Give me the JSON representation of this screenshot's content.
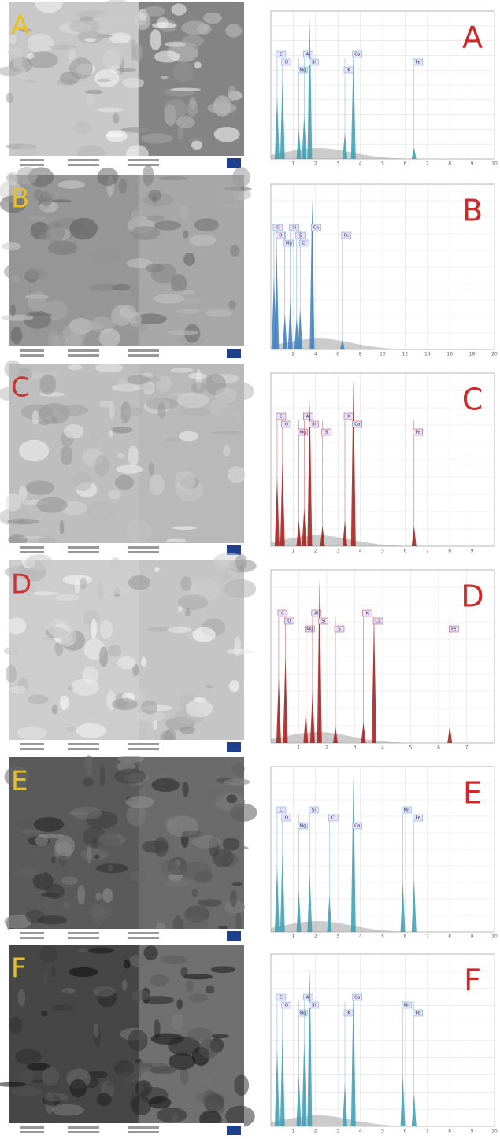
{
  "figure": {
    "panels": [
      {
        "letter": "A",
        "image_letter_color": "#e8c020",
        "spectrum": {
          "color": "#3d9db3",
          "xlim": [
            0,
            10
          ],
          "ylim": [
            0,
            1
          ],
          "xticks": [
            1,
            2,
            3,
            4,
            5,
            6,
            7,
            8,
            9,
            10
          ],
          "peaks": [
            {
              "element": "C",
              "x": 0.28,
              "height": 0.42
            },
            {
              "element": "O",
              "x": 0.52,
              "height": 0.55
            },
            {
              "element": "Mg",
              "x": 1.25,
              "height": 0.2
            },
            {
              "element": "Al",
              "x": 1.49,
              "height": 0.3
            },
            {
              "element": "Si",
              "x": 1.74,
              "height": 0.95
            },
            {
              "element": "K",
              "x": 3.31,
              "height": 0.18
            },
            {
              "element": "Ca",
              "x": 3.69,
              "height": 0.7
            },
            {
              "element": "Fe",
              "x": 6.4,
              "height": 0.08
            }
          ]
        }
      },
      {
        "letter": "B",
        "image_letter_color": "#e8c020",
        "spectrum": {
          "color": "#3d7fc0",
          "xlim": [
            0,
            20
          ],
          "ylim": [
            0,
            1
          ],
          "xticks": [
            2,
            4,
            6,
            8,
            10,
            12,
            14,
            16,
            18,
            20
          ],
          "peaks": [
            {
              "element": "C",
              "x": 0.28,
              "height": 0.45
            },
            {
              "element": "O",
              "x": 0.52,
              "height": 0.6
            },
            {
              "element": "Mg",
              "x": 1.25,
              "height": 0.22
            },
            {
              "element": "Si",
              "x": 1.74,
              "height": 0.3
            },
            {
              "element": "S",
              "x": 2.31,
              "height": 0.2
            },
            {
              "element": "Cl",
              "x": 2.62,
              "height": 0.25
            },
            {
              "element": "Ca",
              "x": 3.69,
              "height": 0.92
            },
            {
              "element": "Fe",
              "x": 6.4,
              "height": 0.06
            }
          ]
        }
      },
      {
        "letter": "C",
        "image_letter_color": "#d03030",
        "spectrum": {
          "color": "#a51c1c",
          "xlim": [
            0,
            10
          ],
          "ylim": [
            0,
            1
          ],
          "xticks": [
            1,
            2,
            3,
            4,
            5,
            6,
            7,
            8,
            9
          ],
          "peaks": [
            {
              "element": "C",
              "x": 0.28,
              "height": 0.4
            },
            {
              "element": "O",
              "x": 0.52,
              "height": 0.5
            },
            {
              "element": "Mg",
              "x": 1.25,
              "height": 0.15
            },
            {
              "element": "Al",
              "x": 1.49,
              "height": 0.22
            },
            {
              "element": "Si",
              "x": 1.74,
              "height": 0.85
            },
            {
              "element": "S",
              "x": 2.31,
              "height": 0.12
            },
            {
              "element": "K",
              "x": 3.31,
              "height": 0.15
            },
            {
              "element": "Ca",
              "x": 3.69,
              "height": 0.97
            },
            {
              "element": "Fe",
              "x": 6.4,
              "height": 0.12
            }
          ]
        }
      },
      {
        "letter": "D",
        "image_letter_color": "#d03030",
        "spectrum": {
          "color": "#a51c1c",
          "xlim": [
            0,
            8
          ],
          "ylim": [
            0,
            1
          ],
          "xticks": [
            1,
            2,
            3,
            4,
            5,
            6,
            7
          ],
          "peaks": [
            {
              "element": "C",
              "x": 0.28,
              "height": 0.38
            },
            {
              "element": "O",
              "x": 0.52,
              "height": 0.5
            },
            {
              "element": "Mg",
              "x": 1.25,
              "height": 0.18
            },
            {
              "element": "Al",
              "x": 1.49,
              "height": 0.3
            },
            {
              "element": "Si",
              "x": 1.74,
              "height": 0.95
            },
            {
              "element": "S",
              "x": 2.31,
              "height": 0.1
            },
            {
              "element": "K",
              "x": 3.31,
              "height": 0.12
            },
            {
              "element": "Ca",
              "x": 3.69,
              "height": 0.72
            },
            {
              "element": "Fe",
              "x": 6.4,
              "height": 0.1
            }
          ]
        }
      },
      {
        "letter": "E",
        "image_letter_color": "#e8c020",
        "spectrum": {
          "color": "#3d9db3",
          "xlim": [
            0,
            10
          ],
          "ylim": [
            0,
            1
          ],
          "xticks": [
            1,
            2,
            3,
            4,
            5,
            6,
            7,
            8,
            9,
            10
          ],
          "peaks": [
            {
              "element": "C",
              "x": 0.28,
              "height": 0.4
            },
            {
              "element": "O",
              "x": 0.52,
              "height": 0.5
            },
            {
              "element": "Mg",
              "x": 1.25,
              "height": 0.25
            },
            {
              "element": "Si",
              "x": 1.74,
              "height": 0.35
            },
            {
              "element": "Cl",
              "x": 2.62,
              "height": 0.22
            },
            {
              "element": "Ca",
              "x": 3.69,
              "height": 0.95
            },
            {
              "element": "Mn",
              "x": 5.9,
              "height": 0.3
            },
            {
              "element": "Fe",
              "x": 6.4,
              "height": 0.33
            }
          ]
        }
      },
      {
        "letter": "F",
        "image_letter_color": "#e8c020",
        "spectrum": {
          "color": "#3d9db3",
          "xlim": [
            0,
            10
          ],
          "ylim": [
            0,
            1
          ],
          "xticks": [
            1,
            2,
            3,
            4,
            5,
            6,
            7,
            8,
            9,
            10
          ],
          "peaks": [
            {
              "element": "C",
              "x": 0.28,
              "height": 0.45
            },
            {
              "element": "O",
              "x": 0.52,
              "height": 0.55
            },
            {
              "element": "Mg",
              "x": 1.25,
              "height": 0.3
            },
            {
              "element": "Al",
              "x": 1.49,
              "height": 0.5
            },
            {
              "element": "Si",
              "x": 1.74,
              "height": 0.93
            },
            {
              "element": "K",
              "x": 3.31,
              "height": 0.25
            },
            {
              "element": "Ca",
              "x": 3.69,
              "height": 0.8
            },
            {
              "element": "Mn",
              "x": 5.9,
              "height": 0.3
            },
            {
              "element": "Fe",
              "x": 6.4,
              "height": 0.2
            }
          ]
        }
      }
    ]
  }
}
